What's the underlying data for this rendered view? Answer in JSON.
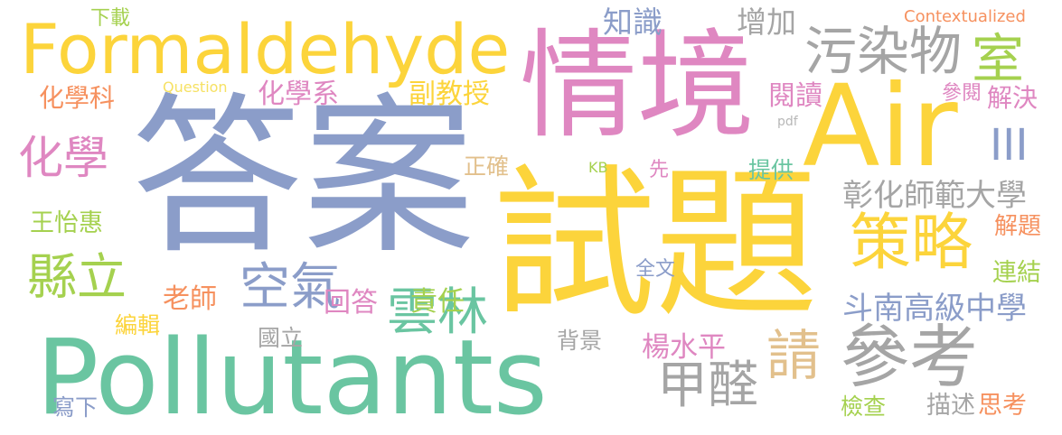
{
  "palette": {
    "blue": "#8b9dc9",
    "yellow": "#fcd43b",
    "pink": "#df87c1",
    "green": "#6ac5a1",
    "grey": "#a5a5a5",
    "orange": "#f6915f",
    "lime": "#a5d14f",
    "tan": "#e2c08c",
    "lightyellow": "#f6e163",
    "lightgrey": "#b7b7b7"
  },
  "words": [
    {
      "id": "dajian",
      "text": "答案",
      "color": "blue"
    },
    {
      "id": "shiti",
      "text": "試題",
      "color": "yellow"
    },
    {
      "id": "qingjing",
      "text": "情境",
      "color": "pink"
    },
    {
      "id": "pollutants",
      "text": "Pollutants",
      "color": "green"
    },
    {
      "id": "formaldehyde",
      "text": "Formaldehyde",
      "color": "yellow"
    },
    {
      "id": "air",
      "text": "Air",
      "color": "yellow"
    },
    {
      "id": "cankao",
      "text": "參考",
      "color": "grey"
    },
    {
      "id": "celue",
      "text": "策略",
      "color": "yellow"
    },
    {
      "id": "wuranwu",
      "text": "污染物",
      "color": "grey"
    },
    {
      "id": "shi",
      "text": "室",
      "color": "lime"
    },
    {
      "id": "kongqi",
      "text": "空氣",
      "color": "blue"
    },
    {
      "id": "yunlin",
      "text": "雲林",
      "color": "green"
    },
    {
      "id": "qing",
      "text": "請",
      "color": "tan"
    },
    {
      "id": "jiaquan",
      "text": "甲醛",
      "color": "grey"
    },
    {
      "id": "xianli",
      "text": "縣立",
      "color": "lime"
    },
    {
      "id": "huaxue",
      "text": "化學",
      "color": "pink"
    },
    {
      "id": "iii",
      "text": "III",
      "color": "blue"
    },
    {
      "id": "huaxueke",
      "text": "化學科",
      "color": "orange"
    },
    {
      "id": "huaxuexi",
      "text": "化學系",
      "color": "pink"
    },
    {
      "id": "fujiaoshou",
      "text": "副教授",
      "color": "yellow"
    },
    {
      "id": "zhishi",
      "text": "知識",
      "color": "blue"
    },
    {
      "id": "zengjia",
      "text": "增加",
      "color": "grey"
    },
    {
      "id": "xiazai",
      "text": "下載",
      "color": "lime"
    },
    {
      "id": "contextualized",
      "text": "Contextualized",
      "color": "orange"
    },
    {
      "id": "question",
      "text": "Question",
      "color": "lightyellow"
    },
    {
      "id": "yuedu",
      "text": "閱讀",
      "color": "pink"
    },
    {
      "id": "canyue",
      "text": "參閱",
      "color": "pink"
    },
    {
      "id": "jiejue",
      "text": "解決",
      "color": "pink"
    },
    {
      "id": "pdf",
      "text": "pdf",
      "color": "lightgrey"
    },
    {
      "id": "zhengque",
      "text": "正確",
      "color": "tan"
    },
    {
      "id": "kb",
      "text": "KB",
      "color": "lime"
    },
    {
      "id": "xian",
      "text": "先",
      "color": "pink"
    },
    {
      "id": "tigong",
      "text": "提供",
      "color": "green"
    },
    {
      "id": "zhanghua",
      "text": "彰化師範大學",
      "color": "grey"
    },
    {
      "id": "wangyihui",
      "text": "王怡惠",
      "color": "lime"
    },
    {
      "id": "jieti",
      "text": "解題",
      "color": "orange"
    },
    {
      "id": "quanwen",
      "text": "全文",
      "color": "blue"
    },
    {
      "id": "laoshi",
      "text": "老師",
      "color": "orange"
    },
    {
      "id": "huida",
      "text": "回答",
      "color": "pink"
    },
    {
      "id": "zeren",
      "text": "責任",
      "color": "lime"
    },
    {
      "id": "lianjie",
      "text": "連結",
      "color": "lime"
    },
    {
      "id": "dounan",
      "text": "斗南高級中學",
      "color": "blue"
    },
    {
      "id": "bianji",
      "text": "編輯",
      "color": "yellow"
    },
    {
      "id": "guoli",
      "text": "國立",
      "color": "grey"
    },
    {
      "id": "beijing",
      "text": "背景",
      "color": "grey"
    },
    {
      "id": "yangshuiping",
      "text": "楊水平",
      "color": "pink"
    },
    {
      "id": "xiexia",
      "text": "寫下",
      "color": "blue"
    },
    {
      "id": "jiancha",
      "text": "檢查",
      "color": "lime"
    },
    {
      "id": "miaoshu",
      "text": "描述",
      "color": "grey"
    },
    {
      "id": "sikao",
      "text": "思考",
      "color": "orange"
    }
  ]
}
